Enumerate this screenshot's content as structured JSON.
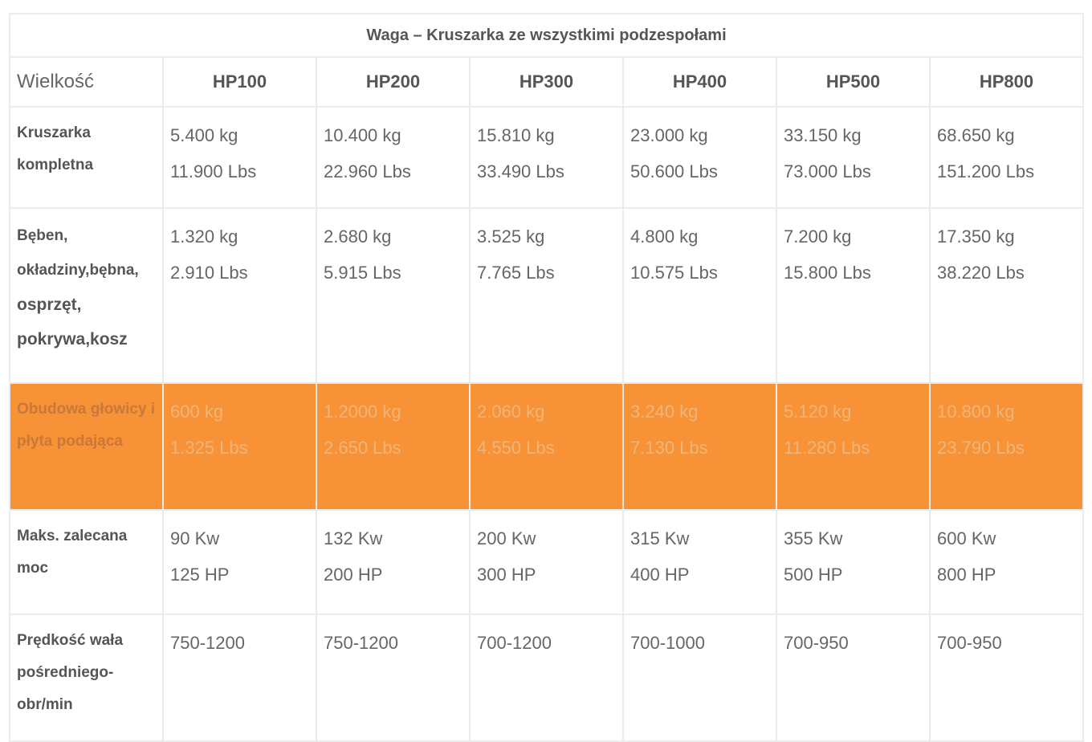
{
  "table": {
    "caption": "Waga – Kruszarka ze wszystkimi podzespołami",
    "header_label": "Wielkość",
    "models": [
      "HP100",
      "HP200",
      "HP300",
      "HP400",
      "HP500",
      "HP800"
    ],
    "highlight_color": "#f79336",
    "rows": [
      {
        "label": "Kruszarka kompletna",
        "cells": [
          [
            "5.400 kg",
            "11.900 Lbs"
          ],
          [
            "10.400 kg",
            "22.960 Lbs"
          ],
          [
            "15.810 kg",
            "33.490 Lbs"
          ],
          [
            "23.000 kg",
            "50.600 Lbs"
          ],
          [
            "33.150 kg",
            "73.000 Lbs"
          ],
          [
            "68.650 kg",
            "151.200 Lbs"
          ]
        ]
      },
      {
        "label_lines": [
          "Bęben,",
          "okładziny,bębna,",
          "osprzęt,",
          "pokrywa,kosz"
        ],
        "cells": [
          [
            "1.320 kg",
            "2.910 Lbs"
          ],
          [
            "2.680 kg",
            "5.915 Lbs"
          ],
          [
            "3.525 kg",
            "7.765 Lbs"
          ],
          [
            "4.800 kg",
            "10.575 Lbs"
          ],
          [
            "7.200 kg",
            "15.800 Lbs"
          ],
          [
            "17.350 kg",
            "38.220 Lbs"
          ]
        ]
      },
      {
        "label": "Obudowa głowicy i płyta podająca",
        "highlighted": true,
        "cells": [
          [
            "600 kg",
            "1.325 Lbs"
          ],
          [
            "1.2000 kg",
            "2.650 Lbs"
          ],
          [
            "2.060 kg",
            "4.550 Lbs"
          ],
          [
            "3.240 kg",
            "7.130 Lbs"
          ],
          [
            "5.120 kg",
            "11.280 Lbs"
          ],
          [
            "10.800 kg",
            "23.790 Lbs"
          ]
        ]
      },
      {
        "label": "Maks. zalecana moc",
        "cells": [
          [
            "90 Kw",
            "125 HP"
          ],
          [
            "132 Kw",
            "200 HP"
          ],
          [
            "200 Kw",
            "300 HP"
          ],
          [
            "315 Kw",
            "400 HP"
          ],
          [
            "355 Kw",
            "500 HP"
          ],
          [
            "600 Kw",
            "800 HP"
          ]
        ]
      },
      {
        "label": "Prędkość wała pośredniego- obr/min",
        "cells": [
          [
            "750-1200"
          ],
          [
            "750-1200"
          ],
          [
            "700-1200"
          ],
          [
            "700-1000"
          ],
          [
            "700-950"
          ],
          [
            "700-950"
          ]
        ]
      }
    ]
  }
}
